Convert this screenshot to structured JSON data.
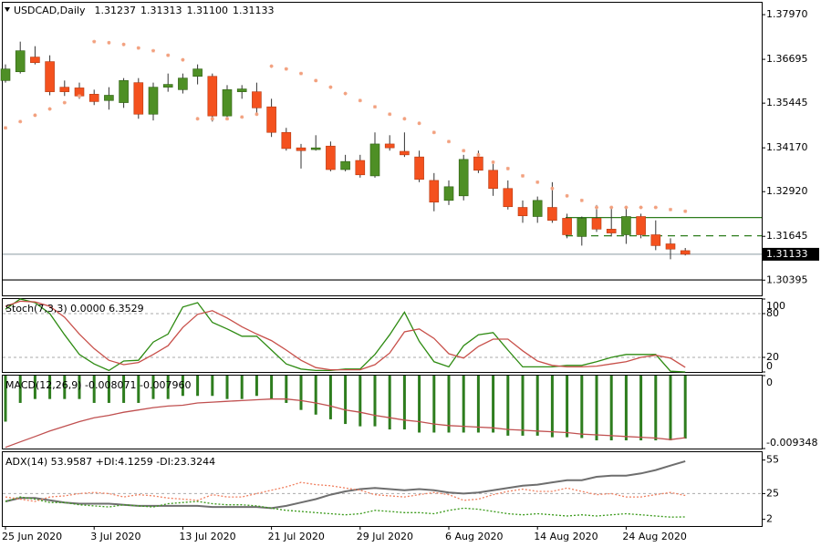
{
  "chart_data": [
    {
      "type": "candlestick",
      "title": "USDCAD,Daily",
      "header_labels": [
        "1.31237",
        "1.31313",
        "1.31100",
        "1.31133"
      ],
      "categories": [
        "25 Jun 2020",
        null,
        null,
        null,
        null,
        null,
        "3 Jul 2020",
        null,
        null,
        null,
        null,
        null,
        "13 Jul 2020",
        null,
        null,
        null,
        null,
        null,
        "21 Jul 2020",
        null,
        null,
        null,
        null,
        null,
        "29 Jul 2020",
        null,
        null,
        null,
        null,
        null,
        "6 Aug 2020",
        null,
        null,
        null,
        null,
        null,
        "14 Aug 2020",
        null,
        null,
        null,
        null,
        null,
        "24 Aug 2020",
        null,
        null,
        null,
        null
      ],
      "open": [
        1.3609,
        1.3634,
        1.3676,
        1.3663,
        1.359,
        1.3588,
        1.357,
        1.3552,
        1.3546,
        1.3603,
        1.3513,
        1.359,
        1.3583,
        1.3621,
        1.3621,
        1.3508,
        1.3577,
        1.3577,
        1.3534,
        1.3461,
        1.3417,
        1.3412,
        1.3422,
        1.3355,
        1.3381,
        1.3337,
        1.3428,
        1.3407,
        1.3391,
        1.3324,
        1.3267,
        1.328,
        1.3391,
        1.3353,
        1.3301,
        1.3247,
        1.3221,
        1.3247,
        1.3216,
        1.3164,
        1.3216,
        1.3185,
        1.3169,
        1.3221,
        1.3169,
        1.3143,
        1.31237
      ],
      "high": [
        1.3655,
        1.372,
        1.3707,
        1.3681,
        1.3609,
        1.3603,
        1.3583,
        1.359,
        1.3616,
        1.3616,
        1.3603,
        1.3629,
        1.3629,
        1.3655,
        1.3629,
        1.3596,
        1.3596,
        1.3603,
        1.3557,
        1.3474,
        1.3428,
        1.3453,
        1.3435,
        1.3397,
        1.3397,
        1.3461,
        1.3453,
        1.3461,
        1.3409,
        1.3345,
        1.3324,
        1.3397,
        1.3409,
        1.3371,
        1.3324,
        1.3267,
        1.3278,
        1.3319,
        1.3229,
        1.3221,
        1.3254,
        1.3247,
        1.3247,
        1.3229,
        1.321,
        1.3159,
        1.31313
      ],
      "low": [
        1.3603,
        1.3629,
        1.3655,
        1.3567,
        1.3565,
        1.3557,
        1.3539,
        1.3526,
        1.3531,
        1.35,
        1.3495,
        1.3577,
        1.3572,
        1.3598,
        1.3492,
        1.35,
        1.3557,
        1.3513,
        1.3448,
        1.3409,
        1.3358,
        1.3409,
        1.335,
        1.335,
        1.3332,
        1.3332,
        1.3409,
        1.3391,
        1.3319,
        1.3236,
        1.3254,
        1.3267,
        1.3345,
        1.328,
        1.3241,
        1.3203,
        1.3203,
        1.3203,
        1.3159,
        1.3138,
        1.3177,
        1.3164,
        1.3143,
        1.3159,
        1.3125,
        1.3099,
        1.311
      ],
      "close": [
        1.3642,
        1.3694,
        1.366,
        1.3577,
        1.3577,
        1.3565,
        1.3549,
        1.3567,
        1.3609,
        1.3513,
        1.359,
        1.3598,
        1.3616,
        1.3642,
        1.3508,
        1.3583,
        1.3585,
        1.3531,
        1.3461,
        1.3415,
        1.3409,
        1.3417,
        1.3355,
        1.3378,
        1.334,
        1.3428,
        1.3417,
        1.3397,
        1.3327,
        1.3262,
        1.3306,
        1.3384,
        1.3353,
        1.3301,
        1.3249,
        1.3223,
        1.3267,
        1.321,
        1.3169,
        1.3216,
        1.3185,
        1.3174,
        1.3221,
        1.3169,
        1.3138,
        1.3128,
        1.31133
      ],
      "up_color": "#4e8f25",
      "down_color": "#f4511e",
      "sar": {
        "color": "#f2a07e",
        "values": [
          1.3474,
          1.3492,
          1.351,
          1.3528,
          1.3546,
          1.3565,
          1.372,
          1.3717,
          1.3712,
          1.3702,
          1.3694,
          1.3681,
          1.3668,
          1.35,
          1.35,
          1.35,
          1.3505,
          1.3513,
          1.365,
          1.3642,
          1.3629,
          1.3609,
          1.359,
          1.3572,
          1.3552,
          1.3534,
          1.3513,
          1.35,
          1.3487,
          1.3461,
          1.3435,
          1.3409,
          1.3397,
          1.3376,
          1.3358,
          1.3337,
          1.3319,
          1.3301,
          1.328,
          1.3267,
          1.3247,
          1.3247,
          1.3247,
          1.3247,
          1.3247,
          1.3241,
          1.3236
        ]
      },
      "hlines": [
        {
          "value": 1.3218,
          "color": "#2e7d1e",
          "dashed": false
        },
        {
          "value": 1.3166,
          "color": "#2e7d1e",
          "dashed": true
        },
        {
          "value": 1.304,
          "color": "#000000",
          "dashed": false
        }
      ],
      "last_price": 1.31133,
      "ylim": [
        1.2996,
        1.3831
      ],
      "yticks": [
        {
          "value": 1.3797,
          "label": "1.37970"
        },
        1.36695,
        1.35445,
        {
          "value": 1.3417,
          "label": "1.34170"
        },
        {
          "value": 1.3292,
          "label": "1.32920"
        },
        1.31645,
        1.30395
      ]
    },
    {
      "type": "line",
      "title": "Stoch(7,3,3) 0.0000 6.3529",
      "ylim": [
        0,
        100
      ],
      "yticks": [
        100,
        80,
        20,
        0
      ],
      "levels": [
        80,
        20
      ],
      "series": [
        {
          "color": "#2e8b12",
          "style": "line",
          "values": [
            86,
            100,
            95,
            80,
            51,
            24,
            11,
            2,
            15,
            16,
            41,
            52,
            89,
            95,
            68,
            59,
            49,
            49,
            30,
            11,
            4,
            2,
            2,
            4,
            4,
            24,
            51,
            82,
            42,
            14,
            7,
            36,
            51,
            54,
            30,
            7,
            7,
            7,
            9,
            9,
            14,
            20,
            24,
            24,
            24,
            1,
            0
          ]
        },
        {
          "color": "#c8504a",
          "style": "line",
          "values": [
            90,
            97,
            96,
            90,
            75,
            52,
            32,
            16,
            10,
            13,
            24,
            36,
            61,
            79,
            84,
            74,
            62,
            52,
            43,
            30,
            16,
            6,
            3,
            3,
            3,
            10,
            26,
            55,
            59,
            46,
            25,
            19,
            35,
            45,
            45,
            29,
            15,
            9,
            7,
            7,
            8,
            11,
            14,
            20,
            23,
            19,
            6.3529
          ]
        }
      ]
    },
    {
      "type": "macd",
      "title": "MACD(12,26,9) -0.008071 -0.007960",
      "ylim": [
        -0.009348,
        0
      ],
      "yticks": [
        0,
        -0.009348
      ],
      "series": [
        {
          "color": "#2e7d1e",
          "style": "bar",
          "values": [
            -0.0059,
            -0.0035,
            -0.003,
            -0.003,
            -0.003,
            -0.003,
            -0.0035,
            -0.0035,
            -0.0035,
            -0.0035,
            -0.003,
            -0.003,
            -0.0026,
            -0.0026,
            -0.0026,
            -0.003,
            -0.003,
            -0.0026,
            -0.003,
            -0.0035,
            -0.0044,
            -0.005,
            -0.0056,
            -0.0062,
            -0.0065,
            -0.0065,
            -0.0069,
            -0.0069,
            -0.0073,
            -0.0073,
            -0.0073,
            -0.0073,
            -0.0073,
            -0.0073,
            -0.0077,
            -0.0077,
            -0.0077,
            -0.0079,
            -0.0079,
            -0.008,
            -0.0083,
            -0.0083,
            -0.0083,
            -0.0083,
            -0.0083,
            -0.0083,
            -0.008071
          ]
        },
        {
          "color": "#c05050",
          "style": "line",
          "values": [
            -0.0092,
            -0.0085,
            -0.0078,
            -0.0071,
            -0.0065,
            -0.0059,
            -0.0054,
            -0.0051,
            -0.0047,
            -0.0044,
            -0.0041,
            -0.0039,
            -0.0038,
            -0.0035,
            -0.0034,
            -0.0033,
            -0.0032,
            -0.0031,
            -0.003,
            -0.003,
            -0.0032,
            -0.0035,
            -0.0039,
            -0.0044,
            -0.0047,
            -0.0051,
            -0.0054,
            -0.0057,
            -0.0059,
            -0.0062,
            -0.0064,
            -0.0065,
            -0.0066,
            -0.0067,
            -0.0069,
            -0.007,
            -0.0071,
            -0.0072,
            -0.0073,
            -0.0075,
            -0.0076,
            -0.0077,
            -0.0078,
            -0.0079,
            -0.008,
            -0.0082,
            -0.00796
          ]
        }
      ]
    },
    {
      "type": "line",
      "title": "ADX(14) 53.9587 +DI:4.1259 -DI:23.3244",
      "ylim": [
        -4,
        62
      ],
      "yticks": [
        55,
        25,
        2
      ],
      "levels": [
        25
      ],
      "series": [
        {
          "color": "#6e6e6e",
          "style": "thick",
          "values": [
            18,
            21,
            21,
            19,
            17,
            16,
            16,
            16,
            15,
            14,
            14,
            14,
            14,
            14,
            13,
            13,
            13,
            13,
            12,
            14,
            17,
            20,
            24,
            27,
            29,
            30,
            29,
            28,
            29,
            28,
            26,
            25,
            26,
            28,
            30,
            32,
            33,
            35,
            37,
            37,
            40,
            41,
            41,
            43,
            46,
            50,
            53.9587
          ]
        },
        {
          "color": "#3a9a1a",
          "style": "dotted",
          "values": [
            18,
            22,
            20,
            17,
            17,
            15,
            14,
            13,
            15,
            14,
            13,
            16,
            17,
            18,
            16,
            15,
            15,
            14,
            12,
            10,
            9,
            8,
            7,
            6,
            7,
            10,
            9,
            8,
            8,
            7,
            10,
            12,
            11,
            9,
            7,
            6,
            7,
            6,
            5,
            6,
            5,
            6,
            7,
            6,
            5,
            4,
            4.1259
          ]
        },
        {
          "color": "#f08060",
          "style": "dotted",
          "values": [
            22,
            20,
            18,
            22,
            23,
            25,
            26,
            25,
            22,
            24,
            23,
            21,
            20,
            19,
            24,
            22,
            22,
            25,
            28,
            31,
            35,
            33,
            32,
            30,
            28,
            24,
            23,
            22,
            24,
            26,
            24,
            19,
            20,
            24,
            27,
            29,
            27,
            27,
            30,
            27,
            24,
            25,
            22,
            22,
            24,
            26,
            23.3244
          ]
        }
      ]
    }
  ]
}
